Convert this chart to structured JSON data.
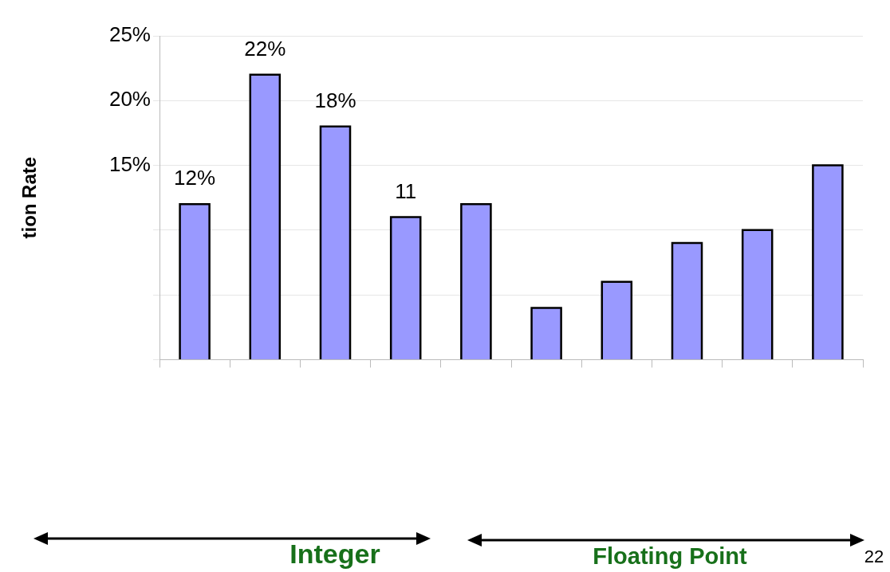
{
  "chart_data": {
    "type": "bar",
    "ylabel": "tion Rate",
    "categories": [
      null,
      null,
      null,
      null,
      null,
      null,
      null,
      null,
      null,
      null
    ],
    "values": [
      12,
      22,
      18,
      11,
      12,
      4,
      6,
      9,
      10,
      15
    ],
    "value_labels": [
      "12%",
      "22%",
      "18%",
      "11",
      null,
      null,
      null,
      null,
      null,
      null
    ],
    "color": "#9999ff",
    "ylim": [
      0,
      25
    ],
    "yticks": [
      {
        "value": 0,
        "label": null
      },
      {
        "value": 5,
        "label": null
      },
      {
        "value": 10,
        "label": null
      },
      {
        "value": 15,
        "label": "15%"
      },
      {
        "value": 20,
        "label": "20%"
      },
      {
        "value": 25,
        "label": "25%"
      }
    ],
    "grid": "y",
    "tick_labels": "y",
    "annotations": [
      "Integer",
      "Floating Point",
      "22"
    ]
  }
}
